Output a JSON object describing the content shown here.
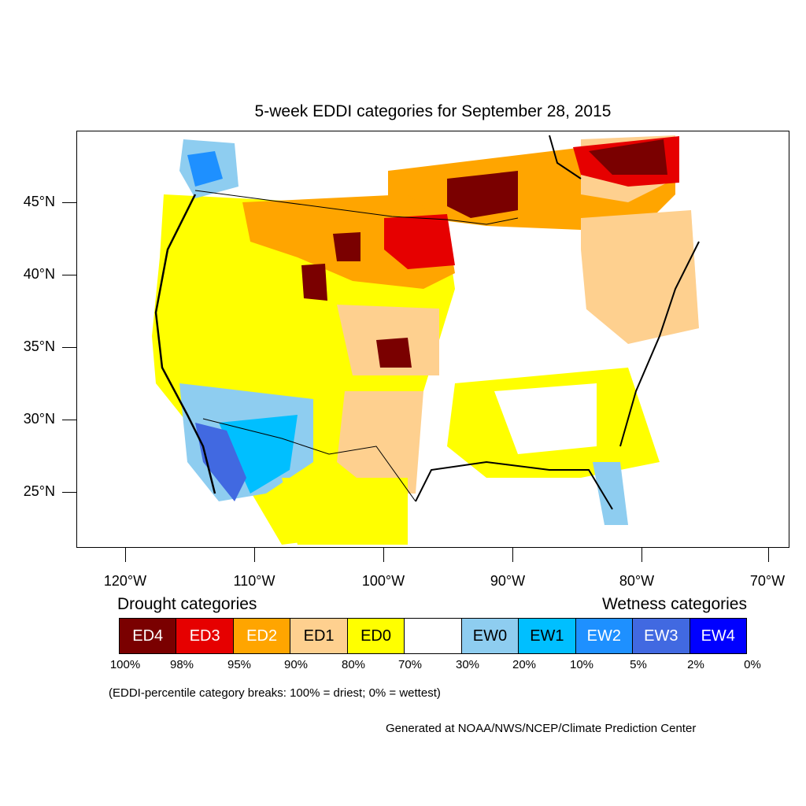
{
  "title": "5-week EDDI categories for September 28, 2015",
  "lat_labels": [
    "45°N",
    "40°N",
    "35°N",
    "30°N",
    "25°N"
  ],
  "lon_labels": [
    "120°W",
    "110°W",
    "100°W",
    "90°W",
    "80°W",
    "70°W"
  ],
  "legend": {
    "drought_title": "Drought categories",
    "wetness_title": "Wetness categories",
    "categories": [
      {
        "label": "ED4",
        "color": "#7a0000",
        "text_color": "#ffffff"
      },
      {
        "label": "ED3",
        "color": "#e60000",
        "text_color": "#ffffff"
      },
      {
        "label": "ED2",
        "color": "#ffa500",
        "text_color": "#ffffff"
      },
      {
        "label": "ED1",
        "color": "#fed08f",
        "text_color": "#000000"
      },
      {
        "label": "ED0",
        "color": "#ffff00",
        "text_color": "#000000"
      },
      {
        "label": "",
        "color": "#ffffff",
        "text_color": "#000000"
      },
      {
        "label": "EW0",
        "color": "#8ecdf0",
        "text_color": "#000000"
      },
      {
        "label": "EW1",
        "color": "#00bfff",
        "text_color": "#000000"
      },
      {
        "label": "EW2",
        "color": "#1e90ff",
        "text_color": "#ffffff"
      },
      {
        "label": "EW3",
        "color": "#4169e1",
        "text_color": "#ffffff"
      },
      {
        "label": "EW4",
        "color": "#0000ff",
        "text_color": "#ffffff"
      }
    ],
    "percentiles": [
      "100%",
      "98%",
      "95%",
      "90%",
      "80%",
      "70%",
      "30%",
      "20%",
      "10%",
      "5%",
      "2%",
      "0%"
    ]
  },
  "note": "(EDDI-percentile category breaks: 100% = driest; 0% = wettest)",
  "credit": "Generated at NOAA/NWS/NCEP/Climate Prediction Center"
}
